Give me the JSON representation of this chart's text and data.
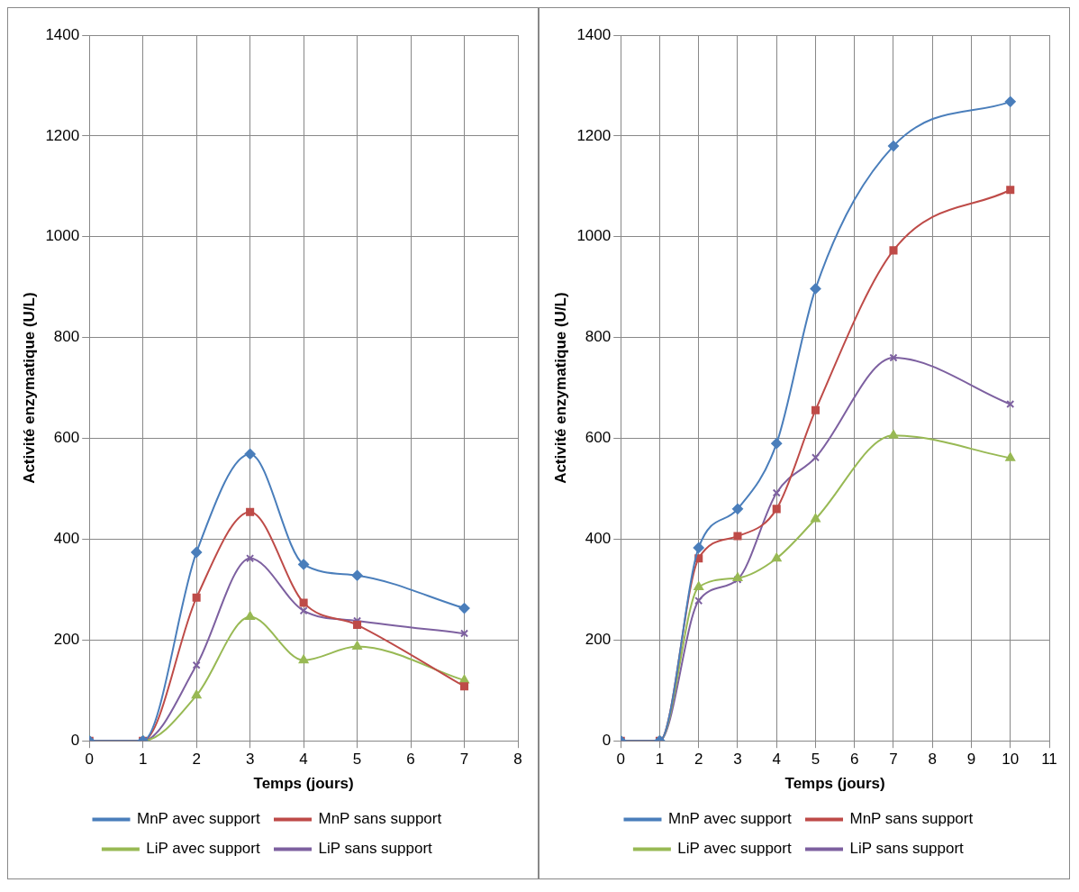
{
  "chart_data": [
    {
      "type": "line",
      "xlabel": "Temps (jours)",
      "ylabel": "Activité enzymatique (U/L)",
      "x": [
        0,
        1,
        2,
        3,
        4,
        5,
        7
      ],
      "xlim": [
        0,
        8
      ],
      "xticks": [
        0,
        1,
        2,
        3,
        4,
        5,
        6,
        7,
        8
      ],
      "ylim": [
        0,
        1400
      ],
      "yticks": [
        0,
        200,
        400,
        600,
        800,
        1000,
        1200,
        1400
      ],
      "grid": true,
      "legend": "bottom",
      "series": [
        {
          "name": "MnP avec support",
          "color": "#4a7ebb",
          "marker": "diamond",
          "values": [
            0,
            0,
            374,
            569,
            350,
            328,
            263
          ]
        },
        {
          "name": "MnP sans support",
          "color": "#be4b48",
          "marker": "square",
          "values": [
            0,
            0,
            284,
            454,
            274,
            230,
            108
          ]
        },
        {
          "name": "LiP avec support",
          "color": "#98b954",
          "marker": "triangle",
          "values": [
            0,
            0,
            90,
            246,
            160,
            187,
            120
          ]
        },
        {
          "name": "LiP sans support",
          "color": "#7d60a0",
          "marker": "cross",
          "values": [
            0,
            0,
            150,
            362,
            258,
            238,
            213
          ]
        }
      ]
    },
    {
      "type": "line",
      "xlabel": "Temps (jours)",
      "ylabel": "Activité enzymatique (U/L)",
      "x": [
        0,
        1,
        2,
        3,
        4,
        5,
        7,
        10
      ],
      "xlim": [
        0,
        11
      ],
      "xticks": [
        0,
        1,
        2,
        3,
        4,
        5,
        6,
        7,
        8,
        9,
        10,
        11
      ],
      "ylim": [
        0,
        1400
      ],
      "yticks": [
        0,
        200,
        400,
        600,
        800,
        1000,
        1200,
        1400
      ],
      "grid": true,
      "legend": "bottom",
      "series": [
        {
          "name": "MnP avec support",
          "color": "#4a7ebb",
          "marker": "diamond",
          "values": [
            0,
            0,
            383,
            460,
            590,
            897,
            1180,
            1268
          ]
        },
        {
          "name": "MnP sans support",
          "color": "#be4b48",
          "marker": "square",
          "values": [
            0,
            0,
            362,
            406,
            460,
            656,
            973,
            1093
          ]
        },
        {
          "name": "LiP avec support",
          "color": "#98b954",
          "marker": "triangle",
          "values": [
            0,
            0,
            305,
            323,
            362,
            440,
            606,
            561
          ]
        },
        {
          "name": "LiP sans support",
          "color": "#7d60a0",
          "marker": "cross",
          "values": [
            0,
            0,
            278,
            320,
            492,
            562,
            760,
            668
          ]
        }
      ]
    }
  ]
}
